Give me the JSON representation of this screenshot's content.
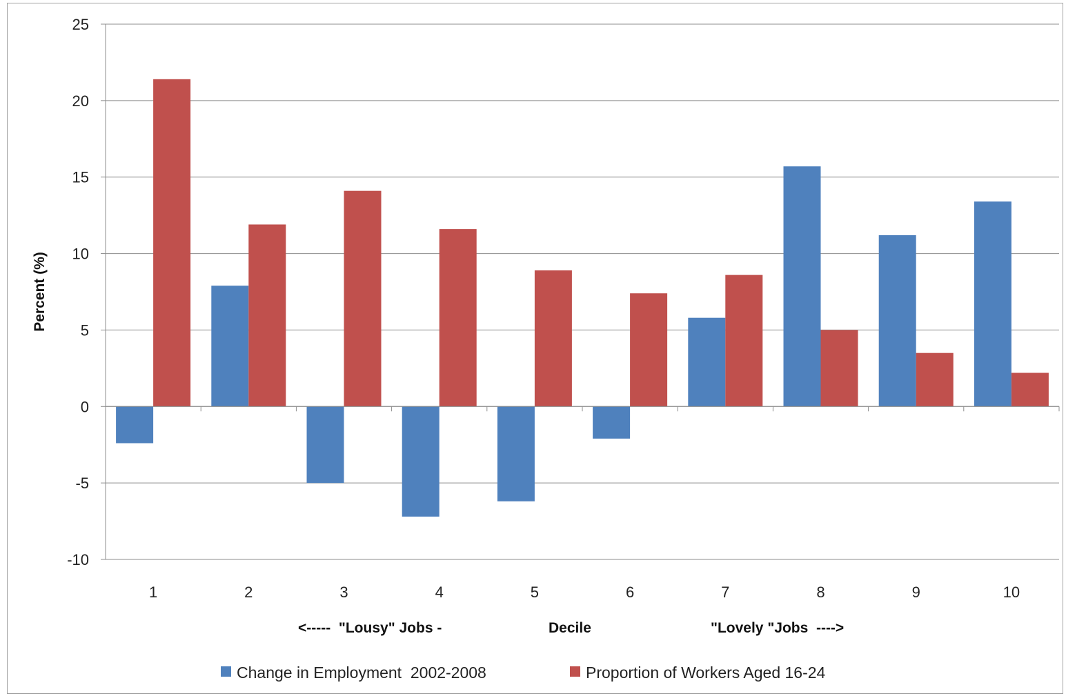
{
  "chart_data": {
    "type": "bar",
    "title": "",
    "ylabel": "Percent (%)",
    "xlabel_parts": {
      "left": "<-----  \"Lousy\" Jobs -",
      "center": "Decile",
      "right": "\"Lovely \"Jobs  ---->"
    },
    "categories": [
      "1",
      "2",
      "3",
      "4",
      "5",
      "6",
      "7",
      "8",
      "9",
      "10"
    ],
    "ylim": [
      -10,
      25
    ],
    "yticks": [
      -10,
      -5,
      0,
      5,
      10,
      15,
      20,
      25
    ],
    "ytick_labels": [
      "-10",
      "-5",
      "0",
      "5",
      "10",
      "15",
      "20",
      "25"
    ],
    "grid": true,
    "legend_position": "bottom",
    "series": [
      {
        "name": "Change in Employment  2002-2008",
        "color": "#4f81bd",
        "values": [
          -2.4,
          7.9,
          -5.0,
          -7.2,
          -6.2,
          -2.1,
          5.8,
          15.7,
          11.2,
          13.4
        ]
      },
      {
        "name": "Proportion of Workers Aged 16-24",
        "color": "#c0504d",
        "values": [
          21.4,
          11.9,
          14.1,
          11.6,
          8.9,
          7.4,
          8.6,
          5.0,
          3.5,
          2.2
        ]
      }
    ]
  }
}
